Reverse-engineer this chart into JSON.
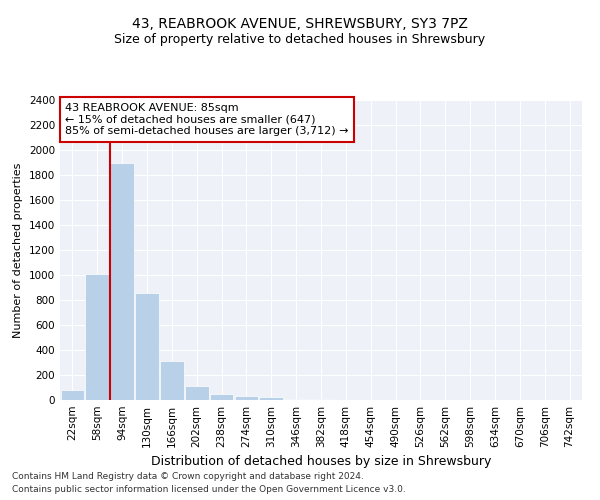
{
  "title": "43, REABROOK AVENUE, SHREWSBURY, SY3 7PZ",
  "subtitle": "Size of property relative to detached houses in Shrewsbury",
  "xlabel": "Distribution of detached houses by size in Shrewsbury",
  "ylabel": "Number of detached properties",
  "bar_labels": [
    "22sqm",
    "58sqm",
    "94sqm",
    "130sqm",
    "166sqm",
    "202sqm",
    "238sqm",
    "274sqm",
    "310sqm",
    "346sqm",
    "382sqm",
    "418sqm",
    "454sqm",
    "490sqm",
    "526sqm",
    "562sqm",
    "598sqm",
    "634sqm",
    "670sqm",
    "706sqm",
    "742sqm"
  ],
  "bar_values": [
    80,
    1010,
    1900,
    860,
    310,
    110,
    45,
    35,
    22,
    10,
    8,
    0,
    0,
    0,
    0,
    0,
    0,
    0,
    0,
    0,
    0
  ],
  "bar_color": "#b8d0e8",
  "bar_edge_color": "#ffffff",
  "property_line_bin": 2,
  "annotation_text": "43 REABROOK AVENUE: 85sqm\n← 15% of detached houses are smaller (647)\n85% of semi-detached houses are larger (3,712) →",
  "annotation_box_color": "#ffffff",
  "annotation_box_edge": "#cc0000",
  "vline_color": "#cc0000",
  "ylim": [
    0,
    2400
  ],
  "yticks": [
    0,
    200,
    400,
    600,
    800,
    1000,
    1200,
    1400,
    1600,
    1800,
    2000,
    2200,
    2400
  ],
  "background_color": "#eef2f8",
  "grid_color": "#ffffff",
  "footer_line1": "Contains HM Land Registry data © Crown copyright and database right 2024.",
  "footer_line2": "Contains public sector information licensed under the Open Government Licence v3.0.",
  "title_fontsize": 10,
  "subtitle_fontsize": 9,
  "xlabel_fontsize": 9,
  "ylabel_fontsize": 8,
  "tick_fontsize": 7.5,
  "annotation_fontsize": 8,
  "footer_fontsize": 6.5
}
